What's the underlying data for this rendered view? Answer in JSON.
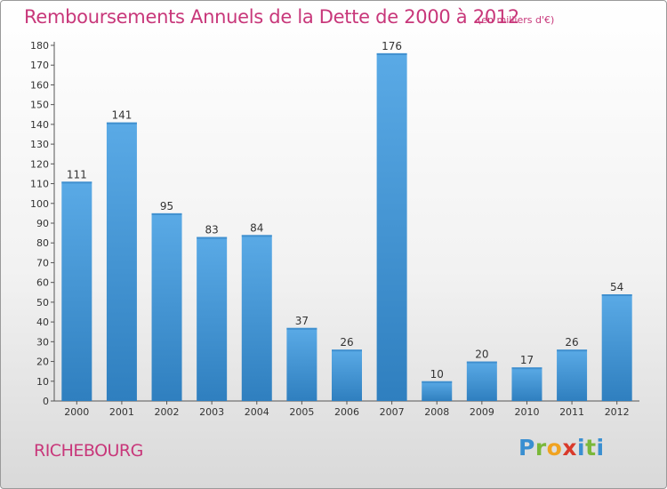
{
  "header": {
    "title": "Remboursements Annuels de la Dette de 2000 à 2012",
    "unit": "(en milliers d'€)"
  },
  "footer": {
    "commune": "RICHEBOURG",
    "brand": [
      "P",
      "r",
      "o",
      "x",
      "i",
      "t",
      "i"
    ]
  },
  "colors": {
    "title": "#c8377a",
    "bar_top": "#5aaae6",
    "bar_bottom": "#2f7fbf",
    "grid": "#d0d0d0"
  },
  "chart_data": {
    "type": "bar",
    "title": "Remboursements Annuels de la Dette de 2000 à 2012",
    "xlabel": "",
    "ylabel": "",
    "categories": [
      "2000",
      "2001",
      "2002",
      "2003",
      "2004",
      "2005",
      "2006",
      "2007",
      "2008",
      "2009",
      "2010",
      "2011",
      "2012"
    ],
    "values": [
      111,
      141,
      95,
      83,
      84,
      37,
      26,
      176,
      10,
      20,
      17,
      26,
      54
    ],
    "ylim": [
      0,
      180
    ],
    "yticks": [
      0,
      10,
      20,
      30,
      40,
      50,
      60,
      70,
      80,
      90,
      100,
      110,
      120,
      130,
      140,
      150,
      160,
      170,
      180
    ],
    "grid": false,
    "legend": "none"
  }
}
